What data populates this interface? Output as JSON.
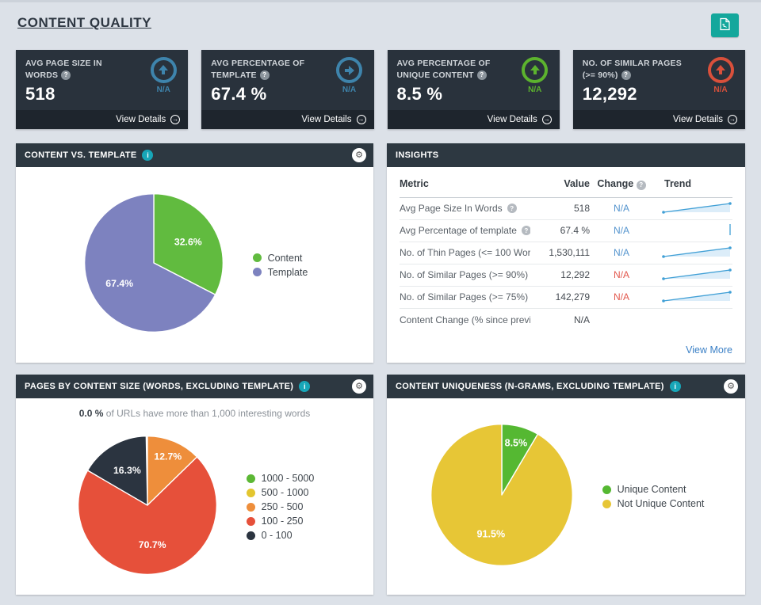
{
  "page": {
    "title": "CONTENT QUALITY"
  },
  "icons": {
    "arrow_right": "→",
    "gear": "⚙",
    "info": "i",
    "help": "?"
  },
  "toolbar": {
    "export_tooltip": "Export PDF"
  },
  "kpis": [
    {
      "label": "AVG PAGE SIZE IN WORDS",
      "value": "518",
      "direction": "up",
      "color": "#3e84ac",
      "na": "N/A",
      "view_details": "View Details"
    },
    {
      "label": "AVG PERCENTAGE OF TEMPLATE",
      "value": "67.4 %",
      "direction": "right",
      "color": "#3e84ac",
      "na": "N/A",
      "view_details": "View Details"
    },
    {
      "label": "AVG PERCENTAGE OF UNIQUE CONTENT",
      "value": "8.5 %",
      "direction": "up",
      "color": "#5cb32e",
      "na": "N/A",
      "view_details": "View Details"
    },
    {
      "label": "NO. OF SIMILAR PAGES (>= 90%)",
      "value": "12,292",
      "direction": "up",
      "color": "#d9503b",
      "na": "N/A",
      "view_details": "View Details"
    }
  ],
  "panels": {
    "content_vs_template": {
      "title": "CONTENT VS. TEMPLATE"
    },
    "insights": {
      "title": "INSIGHTS",
      "columns": {
        "metric": "Metric",
        "value": "Value",
        "change": "Change",
        "trend": "Trend"
      },
      "rows": [
        {
          "metric": "Avg Page Size In Words",
          "value": "518",
          "change": "N/A",
          "change_color": "blue",
          "trend": "up"
        },
        {
          "metric": "Avg Percentage of template",
          "value": "67.4 %",
          "change": "N/A",
          "change_color": "blue",
          "trend": "tick"
        },
        {
          "metric": "No. of Thin Pages (<= 100 Wor...",
          "value": "1,530,111",
          "change": "N/A",
          "change_color": "blue",
          "trend": "up"
        },
        {
          "metric": "No. of Similar Pages (>= 90%)",
          "value": "12,292",
          "change": "N/A",
          "change_color": "red",
          "trend": "up"
        },
        {
          "metric": "No. of Similar Pages (>= 75%)",
          "value": "142,279",
          "change": "N/A",
          "change_color": "red",
          "trend": "up"
        },
        {
          "metric": "Content Change (% since previ...",
          "value": "N/A",
          "change": "",
          "change_color": "none",
          "trend": "none"
        }
      ],
      "view_more": "View More"
    },
    "pages_by_content_size": {
      "title": "PAGES BY CONTENT SIZE (WORDS, EXCLUDING TEMPLATE)",
      "subtitle_bold": "0.0 %",
      "subtitle_rest": " of URLs have more than 1,000 interesting words"
    },
    "content_uniqueness": {
      "title": "CONTENT UNIQUENESS (N-GRAMS, EXCLUDING TEMPLATE)"
    }
  },
  "chart_data": [
    {
      "type": "pie",
      "title": "Content vs. Template",
      "legend_position": "right",
      "slices": [
        {
          "label": "Content",
          "value": 32.6,
          "color": "#61bb3f"
        },
        {
          "label": "Template",
          "value": 67.4,
          "color": "#7d82bf"
        }
      ]
    },
    {
      "type": "pie",
      "title": "Pages by Content Size (words, excluding template)",
      "legend_position": "right",
      "slices": [
        {
          "label": "1000 - 5000",
          "value": 0.0,
          "color": "#5cb835"
        },
        {
          "label": "500 - 1000",
          "value": 0.0,
          "color": "#e3c62f"
        },
        {
          "label": "250 - 500",
          "value": 12.7,
          "color": "#ee8e3b"
        },
        {
          "label": "100 - 250",
          "value": 70.7,
          "color": "#e6503a"
        },
        {
          "label": "0 - 100",
          "value": 16.3,
          "color": "#2b3440"
        }
      ]
    },
    {
      "type": "pie",
      "title": "Content Uniqueness (n-grams, excluding template)",
      "legend_position": "right",
      "slices": [
        {
          "label": "Unique Content",
          "value": 8.5,
          "color": "#55b832"
        },
        {
          "label": "Not Unique Content",
          "value": 91.5,
          "color": "#e7c636"
        }
      ]
    }
  ]
}
